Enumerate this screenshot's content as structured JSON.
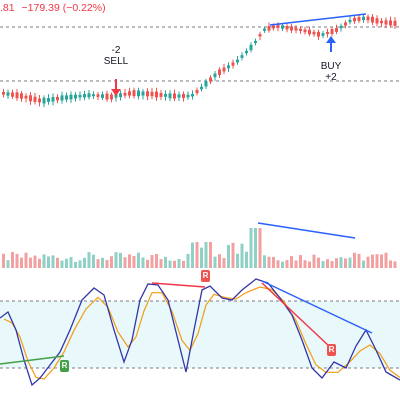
{
  "header": {
    "price_fragment": ".81",
    "change": "−179.39 (−0.22%)"
  },
  "colors": {
    "bull": "#26a69a",
    "bear": "#ef5350",
    "vol_bull": "#8fd1c6",
    "vol_bear": "#f2a0a0",
    "trendline": "#2962ff",
    "stoch_k": "#3535a8",
    "stoch_d": "#f39c12",
    "bear_divergence": "#f23645",
    "bull_divergence": "#43a047",
    "band_fill": "#e9f8fb",
    "dashed": "#787b86"
  },
  "signals": {
    "sell": {
      "qty": "-2",
      "label": "SELL"
    },
    "buy": {
      "qty": "+2",
      "label": "BUY"
    }
  },
  "divergence_badges": [
    {
      "text": "R",
      "kind": "bearish"
    },
    {
      "text": "R",
      "kind": "bearish"
    },
    {
      "text": "R",
      "kind": "bullish"
    }
  ]
}
